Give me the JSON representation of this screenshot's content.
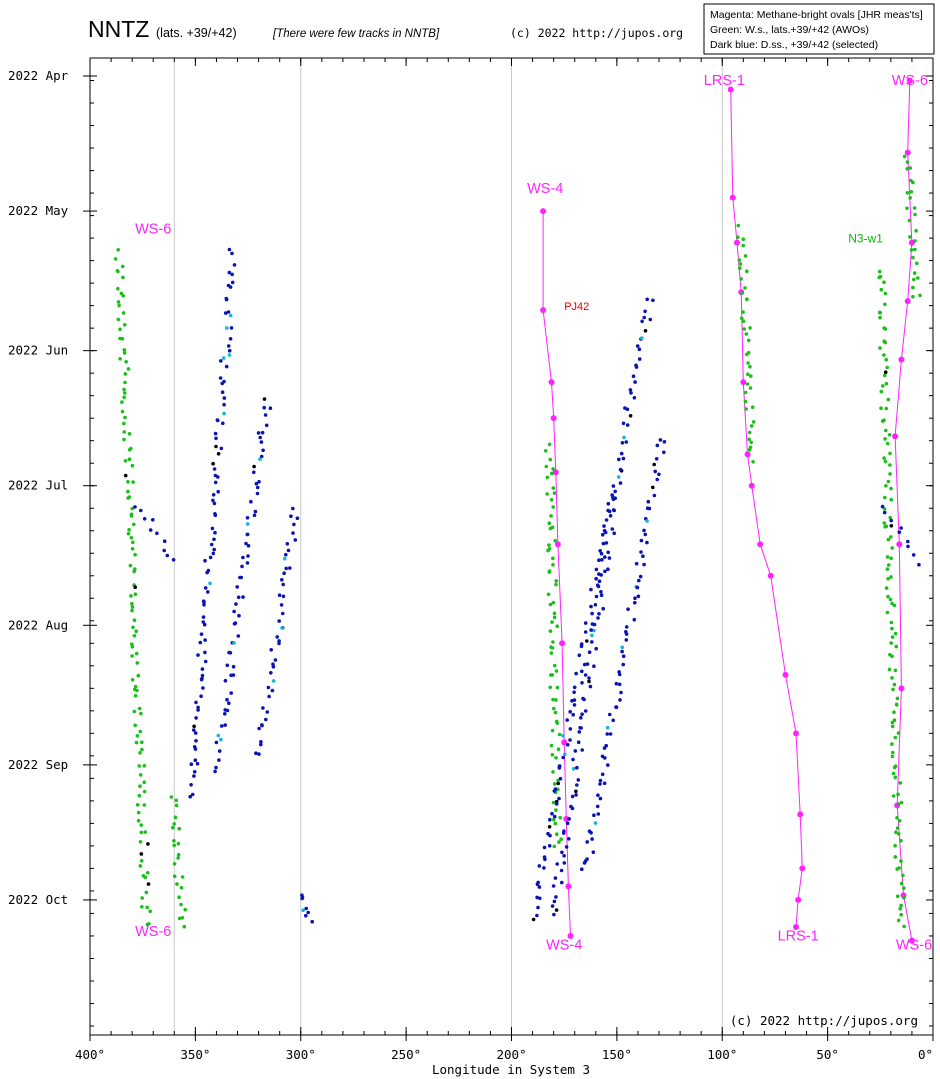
{
  "header": {
    "title": "NNTZ",
    "subtitle": "(lats. +39/+42)",
    "note": "[There were few tracks in NNTB]",
    "copyright": "(c) 2022 http://jupos.org"
  },
  "legend": {
    "lines": [
      "Magenta: Methane-bright ovals [JHR meas'ts]",
      "Green:  W.s., lats.+39/+42 (AWOs)",
      "Dark blue:  D.ss.,  +39/+42 (selected)"
    ]
  },
  "footer_copyright": "(c) 2022 http://jupos.org",
  "chart_data": {
    "type": "scatter",
    "xlabel": "Longitude in System 3",
    "x_axis": {
      "lim": [
        400,
        0
      ],
      "ticks": [
        "400°",
        "350°",
        "300°",
        "250°",
        "200°",
        "150°",
        "100°",
        "50°",
        "0°"
      ],
      "tick_values": [
        400,
        350,
        300,
        250,
        200,
        150,
        100,
        50,
        0
      ]
    },
    "y_axis": {
      "lim": [
        "2022-03-28",
        "2022-10-31"
      ],
      "ticks": [
        {
          "label": "2022 Apr",
          "date": "2022-04-01"
        },
        {
          "label": "2022 May",
          "date": "2022-05-01"
        },
        {
          "label": "2022 Jun",
          "date": "2022-06-01"
        },
        {
          "label": "2022 Jul",
          "date": "2022-07-01"
        },
        {
          "label": "2022 Aug",
          "date": "2022-08-01"
        },
        {
          "label": "2022 Sep",
          "date": "2022-09-01"
        },
        {
          "label": "2022 Oct",
          "date": "2022-10-01"
        }
      ],
      "direction": "down"
    },
    "vertical_gridlines": [
      360,
      300,
      200,
      100
    ],
    "colors": {
      "magenta": "#ff22ff",
      "green": "#18c018",
      "dark_blue": "#0a14b4",
      "cyan": "#18b4d8",
      "black": "#000000",
      "red": "#e00000"
    },
    "labels": [
      {
        "text": "WS-6",
        "x": 370,
        "date": "2022-05-06",
        "color": "magenta"
      },
      {
        "text": "WS-6",
        "x": 370,
        "date": "2022-10-09",
        "color": "magenta"
      },
      {
        "text": "WS-4",
        "x": 184,
        "date": "2022-04-27",
        "color": "magenta"
      },
      {
        "text": "WS-4",
        "x": 175,
        "date": "2022-10-12",
        "color": "magenta"
      },
      {
        "text": "LRS-1",
        "x": 99,
        "date": "2022-04-03",
        "color": "magenta"
      },
      {
        "text": "LRS-1",
        "x": 64,
        "date": "2022-10-10",
        "color": "magenta"
      },
      {
        "text": "WS-6",
        "x": 11,
        "date": "2022-04-03",
        "color": "magenta"
      },
      {
        "text": "WS-6",
        "x": 9,
        "date": "2022-10-12",
        "color": "magenta"
      },
      {
        "text": "N3-w1",
        "x": 32,
        "date": "2022-05-08",
        "color": "green"
      },
      {
        "text": "PJ42",
        "x": 175,
        "date": "2022-05-23",
        "color": "red"
      }
    ],
    "series": [
      {
        "name": "Magenta: Methane-bright ovals [JHR meas'ts]",
        "color": "magenta",
        "tracks": [
          {
            "points": [
              [
                185,
                "2022-05-01"
              ],
              [
                185,
                "2022-05-23"
              ],
              [
                181,
                "2022-06-08"
              ],
              [
                180,
                "2022-06-16"
              ],
              [
                179,
                "2022-06-28"
              ],
              [
                178,
                "2022-07-14"
              ],
              [
                176,
                "2022-08-05"
              ],
              [
                175,
                "2022-08-27"
              ],
              [
                174,
                "2022-09-13"
              ],
              [
                173,
                "2022-09-28"
              ],
              [
                172,
                "2022-10-09"
              ]
            ]
          },
          {
            "points": [
              [
                96,
                "2022-04-04"
              ],
              [
                95,
                "2022-04-28"
              ],
              [
                93,
                "2022-05-08"
              ],
              [
                91,
                "2022-05-19"
              ],
              [
                90,
                "2022-06-08"
              ],
              [
                88,
                "2022-06-24"
              ],
              [
                86,
                "2022-07-01"
              ],
              [
                82,
                "2022-07-14"
              ],
              [
                77,
                "2022-07-21"
              ],
              [
                70,
                "2022-08-12"
              ],
              [
                65,
                "2022-08-25"
              ],
              [
                63,
                "2022-09-12"
              ],
              [
                62,
                "2022-09-24"
              ],
              [
                64,
                "2022-10-01"
              ],
              [
                65,
                "2022-10-07"
              ]
            ]
          },
          {
            "points": [
              [
                11,
                "2022-04-02"
              ],
              [
                12,
                "2022-04-18"
              ],
              [
                10,
                "2022-05-08"
              ],
              [
                12,
                "2022-05-21"
              ],
              [
                15,
                "2022-06-03"
              ],
              [
                18,
                "2022-06-20"
              ],
              [
                16,
                "2022-07-14"
              ],
              [
                15,
                "2022-08-15"
              ],
              [
                17,
                "2022-09-10"
              ],
              [
                14,
                "2022-09-30"
              ],
              [
                10,
                "2022-10-10"
              ]
            ]
          }
        ]
      },
      {
        "name": "Green:  W.s., lats.+39/+42 (AWOs)",
        "color": "green",
        "approximate_tracks": [
          {
            "x_start": 386,
            "x_end": 373,
            "date_start": "2022-05-10",
            "date_end": "2022-10-07"
          },
          {
            "x_start": 361,
            "x_end": 356,
            "date_start": "2022-09-08",
            "date_end": "2022-10-07"
          },
          {
            "x_start": 182,
            "x_end": 178,
            "date_start": "2022-06-22",
            "date_end": "2022-09-20"
          },
          {
            "x_start": 91,
            "x_end": 86,
            "date_start": "2022-05-05",
            "date_end": "2022-06-25"
          },
          {
            "x_start": 25,
            "x_end": 15,
            "date_start": "2022-05-14",
            "date_end": "2022-10-07"
          },
          {
            "x_start": 12,
            "x_end": 8,
            "date_start": "2022-04-18",
            "date_end": "2022-05-21"
          }
        ]
      },
      {
        "name": "Dark blue:  D.ss.,  +39/+42 (selected)",
        "color": "dark_blue",
        "approximate_tracks": [
          {
            "x_start": 332,
            "x_end": 352,
            "date_start": "2022-05-10",
            "date_end": "2022-09-08"
          },
          {
            "x_start": 316,
            "x_end": 340,
            "date_start": "2022-06-12",
            "date_end": "2022-09-02"
          },
          {
            "x_start": 302,
            "x_end": 320,
            "date_start": "2022-07-06",
            "date_end": "2022-08-30"
          },
          {
            "x_start": 378,
            "x_end": 360,
            "date_start": "2022-07-05",
            "date_end": "2022-07-18"
          },
          {
            "x_start": 134,
            "x_end": 190,
            "date_start": "2022-05-20",
            "date_end": "2022-10-05"
          },
          {
            "x_start": 150,
            "x_end": 180,
            "date_start": "2022-07-01",
            "date_end": "2022-10-05"
          },
          {
            "x_start": 128,
            "x_end": 165,
            "date_start": "2022-06-20",
            "date_end": "2022-09-25"
          },
          {
            "x_start": 24,
            "x_end": 8,
            "date_start": "2022-07-05",
            "date_end": "2022-07-18"
          },
          {
            "x_start": 300,
            "x_end": 296,
            "date_start": "2022-09-30",
            "date_end": "2022-10-05"
          }
        ]
      }
    ]
  }
}
